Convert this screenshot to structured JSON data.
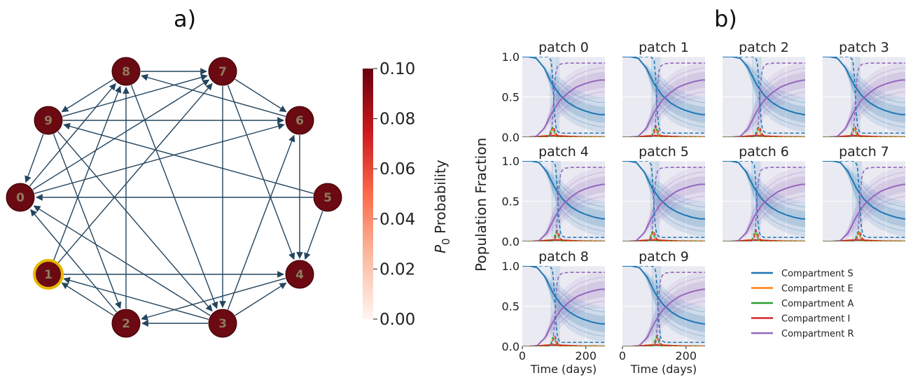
{
  "panel_a_label": "a)",
  "panel_b_label": "b)",
  "colorbar": {
    "label_italic": "P",
    "label_sub": "0",
    "label_rest": " Probability",
    "ticks": [
      "0.00",
      "0.02",
      "0.04",
      "0.06",
      "0.08",
      "0.10"
    ],
    "range": [
      0,
      0.1
    ],
    "colors": [
      "#fff5f0",
      "#fcbba1",
      "#fb6a4a",
      "#cb181d",
      "#67000d"
    ]
  },
  "chart_data": [
    {
      "type": "network",
      "nodes": [
        {
          "id": "0",
          "p0": 0.1,
          "initial": false
        },
        {
          "id": "1",
          "p0": 0.1,
          "initial": true
        },
        {
          "id": "2",
          "p0": 0.1,
          "initial": false
        },
        {
          "id": "3",
          "p0": 0.1,
          "initial": false
        },
        {
          "id": "4",
          "p0": 0.1,
          "initial": false
        },
        {
          "id": "5",
          "p0": 0.1,
          "initial": false
        },
        {
          "id": "6",
          "p0": 0.1,
          "initial": false
        },
        {
          "id": "7",
          "p0": 0.1,
          "initial": false
        },
        {
          "id": "8",
          "p0": 0.1,
          "initial": false
        },
        {
          "id": "9",
          "p0": 0.1,
          "initial": false
        }
      ],
      "edges": [
        [
          "0",
          "8"
        ],
        [
          "9",
          "0"
        ],
        [
          "0",
          "7"
        ],
        [
          "0",
          "6"
        ],
        [
          "3",
          "0"
        ],
        [
          "2",
          "0"
        ],
        [
          "5",
          "0"
        ],
        [
          "2",
          "1"
        ],
        [
          "3",
          "1"
        ],
        [
          "1",
          "4"
        ],
        [
          "1",
          "7"
        ],
        [
          "1",
          "8"
        ],
        [
          "9",
          "2"
        ],
        [
          "2",
          "8"
        ],
        [
          "3",
          "2"
        ],
        [
          "4",
          "2"
        ],
        [
          "3",
          "4"
        ],
        [
          "3",
          "6"
        ],
        [
          "7",
          "3"
        ],
        [
          "8",
          "3"
        ],
        [
          "9",
          "3"
        ],
        [
          "7",
          "4"
        ],
        [
          "5",
          "4"
        ],
        [
          "9",
          "6"
        ],
        [
          "7",
          "6"
        ],
        [
          "6",
          "8"
        ],
        [
          "6",
          "4"
        ],
        [
          "8",
          "7"
        ],
        [
          "9",
          "7"
        ],
        [
          "5",
          "9"
        ],
        [
          "8",
          "9"
        ]
      ],
      "node_color": "#6b0a12",
      "highlight_color": "#e6b800",
      "edge_color": "#24455e"
    },
    {
      "type": "line",
      "ylabel": "Population Fraction",
      "xlabel": "Time (days)",
      "xlim": [
        0,
        260
      ],
      "ylim": [
        0,
        1
      ],
      "xticks": [
        "0",
        "200"
      ],
      "yticks": [
        "0.0",
        "0.5",
        "1.0"
      ],
      "grid": true,
      "legend_position": "bottom-right",
      "panels": [
        "patch 0",
        "patch 1",
        "patch 2",
        "patch 3",
        "patch 4",
        "patch 5",
        "patch 6",
        "patch 7",
        "patch 8",
        "patch 9"
      ],
      "series": [
        {
          "name": "Compartment S",
          "color": "#1f77b4"
        },
        {
          "name": "Compartment E",
          "color": "#ff7f0e"
        },
        {
          "name": "Compartment A",
          "color": "#2ca02c"
        },
        {
          "name": "Compartment I",
          "color": "#d62728"
        },
        {
          "name": "Compartment R",
          "color": "#9467bd"
        }
      ],
      "mean_curves": {
        "t": [
          0,
          25,
          50,
          75,
          100,
          125,
          150,
          175,
          200,
          225,
          250
        ],
        "S": [
          1.0,
          1.0,
          0.98,
          0.86,
          0.66,
          0.52,
          0.43,
          0.37,
          0.33,
          0.3,
          0.28
        ],
        "R": [
          0.0,
          0.0,
          0.01,
          0.11,
          0.31,
          0.46,
          0.55,
          0.62,
          0.66,
          0.69,
          0.71
        ],
        "E": [
          0.0,
          0.0,
          0.005,
          0.015,
          0.02,
          0.015,
          0.01,
          0.006,
          0.003,
          0.002,
          0.001
        ],
        "A": [
          0.0,
          0.0,
          0.005,
          0.01,
          0.015,
          0.012,
          0.008,
          0.005,
          0.003,
          0.002,
          0.001
        ],
        "I": [
          0.0,
          0.0,
          0.005,
          0.012,
          0.018,
          0.014,
          0.009,
          0.005,
          0.003,
          0.002,
          0.001
        ]
      },
      "dashed_curves": {
        "t": [
          0,
          90,
          100,
          105,
          110,
          115,
          120,
          130,
          150,
          250
        ],
        "S": [
          1.0,
          1.0,
          0.95,
          0.7,
          0.3,
          0.12,
          0.07,
          0.05,
          0.05,
          0.05
        ],
        "R": [
          0.0,
          0.0,
          0.03,
          0.25,
          0.62,
          0.82,
          0.88,
          0.91,
          0.92,
          0.92
        ],
        "I": [
          0.0,
          0.0,
          0.06,
          0.14,
          0.1,
          0.04,
          0.02,
          0.005,
          0.0,
          0.0
        ]
      }
    }
  ]
}
